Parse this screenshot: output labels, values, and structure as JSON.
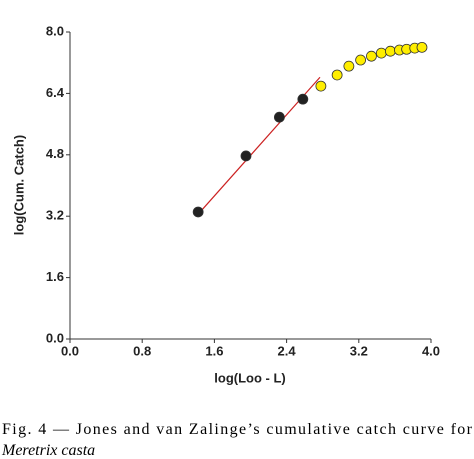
{
  "chart_data": {
    "type": "scatter",
    "x_label": "log(Loo - L)",
    "y_label": "log(Cum. Catch)",
    "xlim": [
      0,
      4
    ],
    "ylim": [
      0,
      8
    ],
    "xticks": [
      {
        "value": 0,
        "label": "0.0"
      },
      0.8,
      1.6,
      2.4,
      3.2,
      {
        "value": 4,
        "label": "4.0"
      }
    ],
    "yticks": [
      {
        "value": 0,
        "label": "0.0"
      },
      1.6,
      3.2,
      4.8,
      6.4,
      {
        "value": 8,
        "label": "8.0"
      }
    ],
    "series": [
      {
        "style": "line",
        "color": "#cc2222",
        "x": [
          1.4,
          2.77
        ],
        "values": [
          3.2,
          6.82
        ]
      },
      {
        "style": "points",
        "color": "#222222",
        "x": [
          1.42,
          1.95,
          2.32,
          2.58
        ],
        "values": [
          3.31,
          4.77,
          5.78,
          6.25
        ]
      },
      {
        "style": "points",
        "color": "#ffee00",
        "x": [
          2.78,
          2.96,
          3.09,
          3.22,
          3.34,
          3.45,
          3.55,
          3.65,
          3.73,
          3.82,
          3.9
        ],
        "values": [
          6.59,
          6.88,
          7.11,
          7.27,
          7.37,
          7.45,
          7.5,
          7.53,
          7.55,
          7.58,
          7.6
        ]
      }
    ]
  },
  "caption": {
    "text": "Fig. 4 — Jones and van Zalinge’s cumulative catch curve for",
    "species": "Meretrix casta"
  }
}
